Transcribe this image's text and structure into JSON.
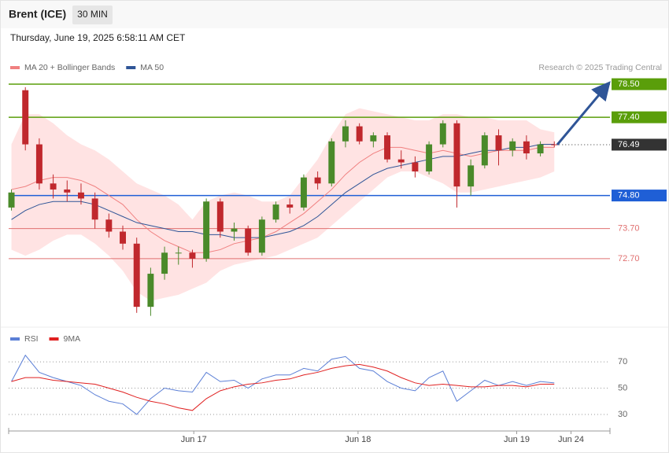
{
  "header": {
    "title": "Brent (ICE)",
    "interval": "30 MIN",
    "datetime": "Thursday, June 19, 2025 6:58:11 AM CET"
  },
  "chart_data": [
    {
      "type": "candlestick",
      "source": "Research © 2025 Trading Central",
      "categories": [
        null,
        null,
        null,
        null,
        null,
        null,
        null,
        null,
        null,
        null,
        null,
        null,
        null,
        null,
        null,
        null,
        null,
        null,
        null,
        null,
        null,
        null,
        null,
        null,
        null,
        null,
        null,
        null,
        null,
        null,
        null,
        null,
        null,
        null,
        null,
        null,
        null,
        null,
        null,
        null
      ],
      "xlim": [
        -0.2,
        43
      ],
      "ylim": [
        70.45,
        79.73
      ],
      "up_color": "#4a8a2a",
      "down_color": "#c0282d",
      "open": [
        74.4,
        78.3,
        76.5,
        75.2,
        75.0,
        74.9,
        74.7,
        74.0,
        73.6,
        73.2,
        71.1,
        72.2,
        72.9,
        72.9,
        72.7,
        74.6,
        73.6,
        73.7,
        72.9,
        74.0,
        74.5,
        74.4,
        75.4,
        75.2,
        76.6,
        77.1,
        76.6,
        76.8,
        76.0,
        75.9,
        75.6,
        76.5,
        77.2,
        75.1,
        75.8,
        76.8,
        76.3,
        76.6,
        76.2,
        76.5
      ],
      "high": [
        75.0,
        78.4,
        76.7,
        75.5,
        75.3,
        75.2,
        74.9,
        74.2,
        73.8,
        73.4,
        72.4,
        73.1,
        73.1,
        73.0,
        74.7,
        74.7,
        73.9,
        73.8,
        74.1,
        74.6,
        74.7,
        75.5,
        75.6,
        76.7,
        77.3,
        77.2,
        76.9,
        76.9,
        76.3,
        76.1,
        76.6,
        77.3,
        77.3,
        76.0,
        76.9,
        77.0,
        76.7,
        76.8,
        76.6,
        76.6
      ],
      "low": [
        74.3,
        76.3,
        75.0,
        74.7,
        74.6,
        74.5,
        73.7,
        73.4,
        73.0,
        70.9,
        70.8,
        72.0,
        72.5,
        72.4,
        72.6,
        73.4,
        73.3,
        72.8,
        72.8,
        73.9,
        74.2,
        74.3,
        75.0,
        75.1,
        76.4,
        76.5,
        76.4,
        75.9,
        75.7,
        75.4,
        75.5,
        76.4,
        74.4,
        74.8,
        75.7,
        75.8,
        76.1,
        76.0,
        76.1,
        76.4
      ],
      "close": [
        74.9,
        76.5,
        75.2,
        75.0,
        74.9,
        74.7,
        74.0,
        73.6,
        73.2,
        71.1,
        72.2,
        72.9,
        72.9,
        72.7,
        74.6,
        73.6,
        73.7,
        72.9,
        74.0,
        74.5,
        74.4,
        75.4,
        75.2,
        76.6,
        77.1,
        76.6,
        76.8,
        76.0,
        75.9,
        75.6,
        76.5,
        77.2,
        75.1,
        75.8,
        76.8,
        76.3,
        76.6,
        76.2,
        76.5,
        76.49
      ],
      "bands": {
        "color": "#ffe3e3",
        "upper": [
          76.5,
          77.5,
          77.5,
          77.2,
          76.8,
          76.5,
          76.3,
          76.0,
          75.6,
          75.2,
          75.0,
          74.8,
          74.5,
          74.0,
          74.6,
          74.8,
          74.9,
          74.8,
          74.6,
          74.6,
          74.8,
          75.4,
          76.0,
          76.8,
          77.5,
          77.7,
          77.6,
          77.5,
          77.4,
          77.3,
          77.3,
          77.5,
          77.5,
          77.4,
          77.4,
          77.3,
          77.3,
          77.3,
          77.0,
          76.9
        ],
        "lower": [
          73.0,
          72.8,
          73.0,
          73.3,
          73.5,
          73.5,
          73.2,
          72.8,
          72.3,
          71.6,
          71.3,
          71.4,
          71.5,
          71.7,
          71.9,
          72.3,
          72.5,
          72.6,
          72.7,
          72.8,
          73.0,
          73.2,
          73.4,
          73.8,
          74.2,
          74.6,
          75.0,
          75.4,
          75.6,
          75.6,
          75.4,
          75.2,
          74.9,
          74.9,
          75.0,
          75.1,
          75.2,
          75.3,
          75.4,
          75.6
        ]
      },
      "series": [
        {
          "name": "MA 20 + Bollinger Bands",
          "color": "#f08080",
          "values": [
            75.0,
            75.1,
            75.3,
            75.4,
            75.4,
            75.3,
            75.1,
            74.8,
            74.5,
            74.0,
            73.6,
            73.3,
            73.1,
            72.9,
            72.9,
            73.0,
            73.2,
            73.3,
            73.4,
            73.6,
            73.9,
            74.2,
            74.6,
            75.0,
            75.5,
            75.9,
            76.2,
            76.4,
            76.4,
            76.3,
            76.2,
            76.3,
            76.2,
            76.1,
            76.2,
            76.3,
            76.3,
            76.3,
            76.4,
            76.4
          ]
        },
        {
          "name": "MA 50",
          "color": "#2f5597",
          "values": [
            74.0,
            74.3,
            74.5,
            74.6,
            74.6,
            74.6,
            74.5,
            74.3,
            74.1,
            73.9,
            73.8,
            73.7,
            73.6,
            73.6,
            73.5,
            73.5,
            73.4,
            73.4,
            73.4,
            73.5,
            73.6,
            73.8,
            74.1,
            74.5,
            74.9,
            75.2,
            75.5,
            75.7,
            75.8,
            75.9,
            76.0,
            76.1,
            76.1,
            76.2,
            76.3,
            76.3,
            76.4,
            76.4,
            76.5,
            76.5
          ]
        }
      ],
      "levels": [
        {
          "value": 78.5,
          "label": "78.50",
          "color": "#5a9e0a",
          "style": "box"
        },
        {
          "value": 77.4,
          "label": "77.40",
          "color": "#5a9e0a",
          "style": "box"
        },
        {
          "value": 74.8,
          "label": "74.80",
          "color": "#1f5fd6",
          "style": "box"
        },
        {
          "value": 73.7,
          "label": "73.70",
          "color": "#e07070",
          "style": "text"
        },
        {
          "value": 72.7,
          "label": "72.70",
          "color": "#e07070",
          "style": "text"
        }
      ],
      "last_price": {
        "value": 76.49,
        "label": "76.49",
        "color": "#333333"
      }
    },
    {
      "type": "line",
      "categories": [
        null,
        null,
        null,
        null,
        null,
        null,
        null,
        null,
        null,
        null,
        null,
        null,
        null,
        null,
        null,
        null,
        null,
        null,
        null,
        null,
        null,
        null,
        null,
        null,
        null,
        null,
        null,
        null,
        null,
        null,
        null,
        null,
        null,
        null,
        null,
        null,
        null,
        null,
        null,
        null
      ],
      "xlim": [
        -0.2,
        43
      ],
      "ylim": [
        19.2,
        82
      ],
      "yticks": [
        70,
        50,
        30
      ],
      "xticks": [
        {
          "value": 13.1,
          "label": "Jun 17"
        },
        {
          "value": 24.9,
          "label": "Jun 18"
        },
        {
          "value": 36.3,
          "label": "Jun 19"
        },
        {
          "value": 40.2,
          "label": "Jun 24"
        }
      ],
      "series": [
        {
          "name": "RSI",
          "color": "#5b7fd6",
          "values": [
            55,
            75,
            62,
            58,
            55,
            52,
            45,
            40,
            38,
            30,
            42,
            50,
            48,
            47,
            62,
            55,
            56,
            50,
            57,
            60,
            60,
            65,
            63,
            72,
            74,
            65,
            63,
            55,
            50,
            48,
            58,
            63,
            40,
            48,
            56,
            52,
            55,
            52,
            55,
            54
          ]
        },
        {
          "name": "9MA",
          "color": "#e02020",
          "values": [
            55,
            58,
            58,
            56,
            55,
            54,
            53,
            50,
            47,
            43,
            40,
            38,
            35,
            33,
            42,
            48,
            51,
            53,
            54,
            56,
            57,
            60,
            62,
            65,
            67,
            68,
            66,
            63,
            58,
            54,
            52,
            53,
            52,
            51,
            51,
            52,
            52,
            51,
            53,
            53
          ]
        }
      ]
    }
  ]
}
